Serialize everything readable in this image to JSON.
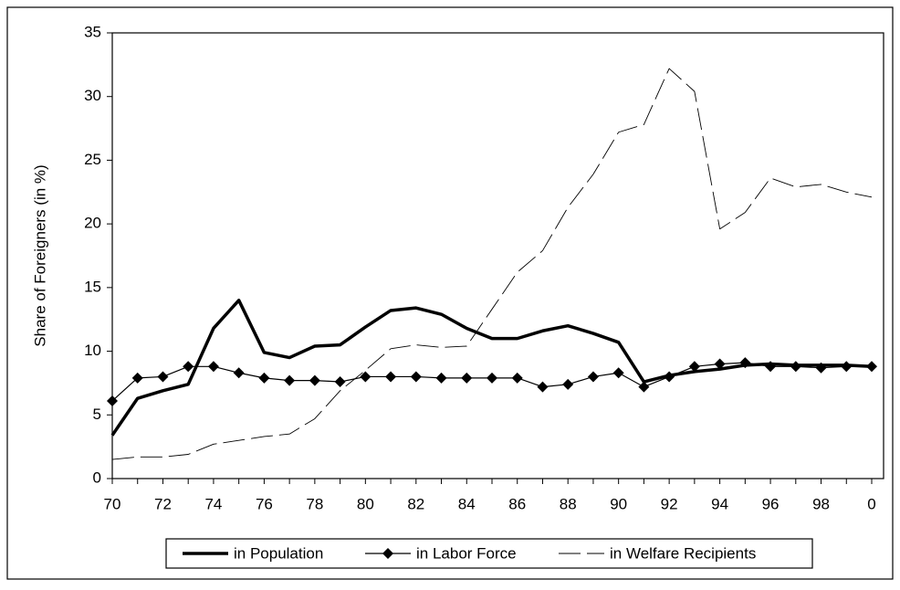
{
  "chart_data": {
    "type": "line",
    "y_label": "Share of Foreigners (in %)",
    "categories": [
      "70",
      null,
      "72",
      null,
      "74",
      null,
      "76",
      null,
      "78",
      null,
      "80",
      null,
      "82",
      null,
      "84",
      null,
      "86",
      null,
      "88",
      null,
      "90",
      null,
      "92",
      null,
      "94",
      null,
      "96",
      null,
      "98",
      null,
      "0"
    ],
    "ylim": [
      0,
      35
    ],
    "yticks": [
      0,
      5,
      10,
      15,
      20,
      25,
      30,
      35
    ],
    "legend": "bottom",
    "series": [
      {
        "name": "in Population",
        "color": "#000000",
        "line_width": 3.5,
        "dash": "solid",
        "marker": "none",
        "values": [
          3.4,
          6.3,
          6.9,
          7.4,
          11.8,
          14.0,
          9.9,
          9.5,
          10.4,
          10.5,
          11.9,
          13.2,
          13.4,
          12.9,
          11.8,
          11.0,
          11.0,
          11.6,
          12.0,
          11.4,
          10.7,
          7.6,
          8.1,
          8.4,
          8.6,
          8.9,
          9.0,
          8.9,
          8.9,
          8.9,
          8.8
        ]
      },
      {
        "name": "in Labor Force",
        "color": "#000000",
        "line_width": 1.2,
        "dash": "solid",
        "marker": "diamond",
        "values": [
          6.1,
          7.9,
          8.0,
          8.8,
          8.8,
          8.3,
          7.9,
          7.7,
          7.7,
          7.6,
          8.0,
          8.0,
          8.0,
          7.9,
          7.9,
          7.9,
          7.9,
          7.2,
          7.4,
          8.0,
          8.3,
          7.2,
          8.0,
          8.8,
          9.0,
          9.1,
          8.8,
          8.8,
          8.7,
          8.8,
          8.8
        ]
      },
      {
        "name": "in Welfare Recipients",
        "color": "#000000",
        "line_width": 0.9,
        "dash": "dashed",
        "marker": "none",
        "values": [
          1.5,
          1.7,
          1.7,
          1.9,
          2.7,
          3.0,
          3.3,
          3.5,
          4.7,
          6.9,
          8.5,
          10.2,
          10.5,
          10.3,
          10.4,
          13.3,
          16.2,
          17.9,
          21.3,
          23.9,
          27.2,
          27.8,
          32.2,
          30.4,
          19.6,
          20.9,
          23.6,
          22.9,
          23.1,
          22.5,
          22.1
        ]
      }
    ]
  }
}
